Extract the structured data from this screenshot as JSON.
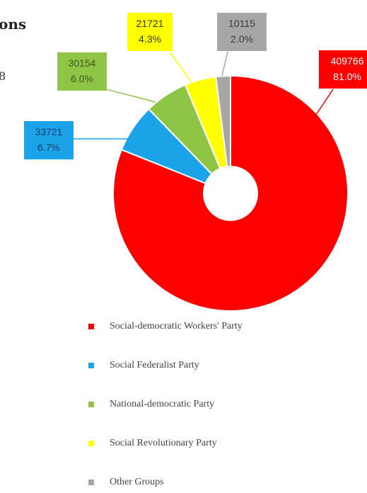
{
  "header": {
    "title_fragment": "ons",
    "subtitle_fragment": "8"
  },
  "chart_data": {
    "type": "pie",
    "style": "donut",
    "categories": [
      "Social-democratic Workers' Party",
      "Social Federalist Party",
      "National-democratic Party",
      "Social Revolutionary Party",
      "Other Groups"
    ],
    "values": [
      409766,
      33721,
      30154,
      21721,
      10115
    ],
    "percent_labels": [
      "81.0%",
      "6.7%",
      "6.0%",
      "4.3%",
      "2.0%"
    ],
    "value_labels": [
      "409766",
      "33721",
      "30154",
      "21721",
      "10115"
    ],
    "colors": [
      "#ff0000",
      "#1ca3e8",
      "#8fc447",
      "#ffff00",
      "#a6a6a6"
    ],
    "label_text_colors": [
      "#ffffff",
      "#1a3d6b",
      "#3c5a1a",
      "#3a3a00",
      "#3a3a3a"
    ],
    "legend_position": "bottom"
  }
}
